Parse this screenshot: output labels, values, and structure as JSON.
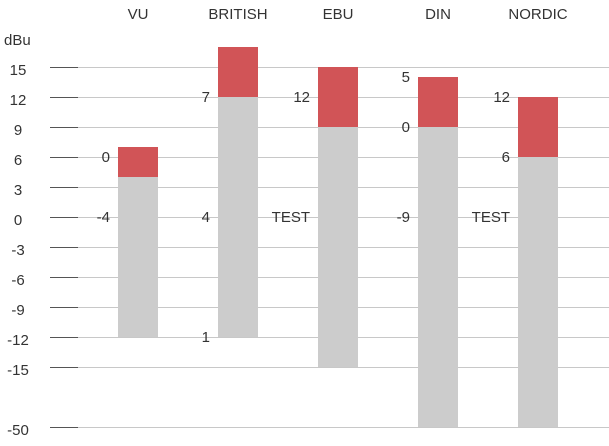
{
  "chart_data": {
    "type": "bar",
    "ylabel": "dBu",
    "yticks": [
      "15",
      "12",
      "9",
      "6",
      "3",
      "0",
      "-3",
      "-6",
      "-9",
      "-12",
      "-15",
      "-50"
    ],
    "ytick_values": [
      15,
      12,
      9,
      6,
      3,
      0,
      -3,
      -6,
      -9,
      -12,
      -15,
      -50
    ],
    "ylim": [
      -50,
      17
    ],
    "axis_break": [
      -18,
      -50
    ],
    "grid": true,
    "categories": [
      "VU",
      "BRITISH",
      "EBU",
      "DIN",
      "NORDIC"
    ],
    "meters": [
      {
        "name": "VU",
        "bottom_dbu": -12,
        "ref_dbu": 4,
        "top_dbu": 7,
        "labels": [
          {
            "text": "0",
            "dbu": 6
          },
          {
            "text": "-4",
            "dbu": 0
          }
        ]
      },
      {
        "name": "BRITISH",
        "bottom_dbu": -12,
        "ref_dbu": 12,
        "top_dbu": 17,
        "labels": [
          {
            "text": "7",
            "dbu": 12
          },
          {
            "text": "4",
            "dbu": 0
          },
          {
            "text": "1",
            "dbu": -12
          }
        ]
      },
      {
        "name": "EBU",
        "bottom_dbu": -15,
        "ref_dbu": 9,
        "top_dbu": 15,
        "labels": [
          {
            "text": "12",
            "dbu": 12
          },
          {
            "text": "TEST",
            "dbu": 0
          }
        ]
      },
      {
        "name": "DIN",
        "bottom_dbu": -50,
        "ref_dbu": 9,
        "top_dbu": 14,
        "labels": [
          {
            "text": "5",
            "dbu": 14
          },
          {
            "text": "0",
            "dbu": 9
          },
          {
            "text": "-9",
            "dbu": 0
          }
        ]
      },
      {
        "name": "NORDIC",
        "bottom_dbu": -50,
        "ref_dbu": 6,
        "top_dbu": 12,
        "labels": [
          {
            "text": "12",
            "dbu": 12
          },
          {
            "text": "6",
            "dbu": 6
          },
          {
            "text": "TEST",
            "dbu": 0
          }
        ]
      }
    ],
    "colors": {
      "base": "#cccccc",
      "peak": "#d15457",
      "grid": "#c8c8c8",
      "tick_mark": "#555555",
      "text": "#333333"
    }
  }
}
